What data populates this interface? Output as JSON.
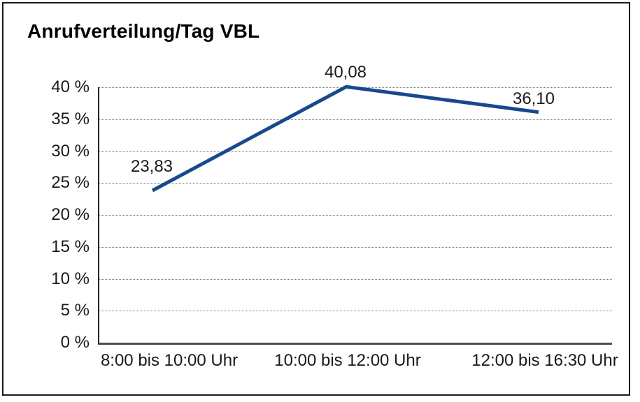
{
  "title": "Anrufverteilung/Tag VBL",
  "chart_data": {
    "type": "line",
    "title": "Anrufverteilung/Tag VBL",
    "categories": [
      "8:00 bis 10:00 Uhr",
      "10:00 bis 12:00 Uhr",
      "12:00 bis 16:30 Uhr"
    ],
    "series": [
      {
        "name": "Anrufverteilung/Tag VBL",
        "values": [
          23.83,
          40.08,
          36.1
        ]
      }
    ],
    "value_labels": [
      "23,83",
      "40,08",
      "36,10"
    ],
    "ytick_labels": [
      "40 %",
      "35 %",
      "30 %",
      "25 %",
      "20 %",
      "15 %",
      "10 %",
      "5 %",
      "0 %"
    ],
    "ytick_values": [
      40,
      35,
      30,
      25,
      20,
      15,
      10,
      5,
      0
    ],
    "ylim": [
      0,
      40
    ],
    "xlabel": "",
    "ylabel": "",
    "grid": "horizontal-dotted",
    "legend": "none",
    "line_color": "#17498c",
    "grid_color": "#7a7a7a",
    "axis_color": "#262626",
    "baseline_color": "#4f4f4f",
    "text_color": "#1a1a1a"
  }
}
